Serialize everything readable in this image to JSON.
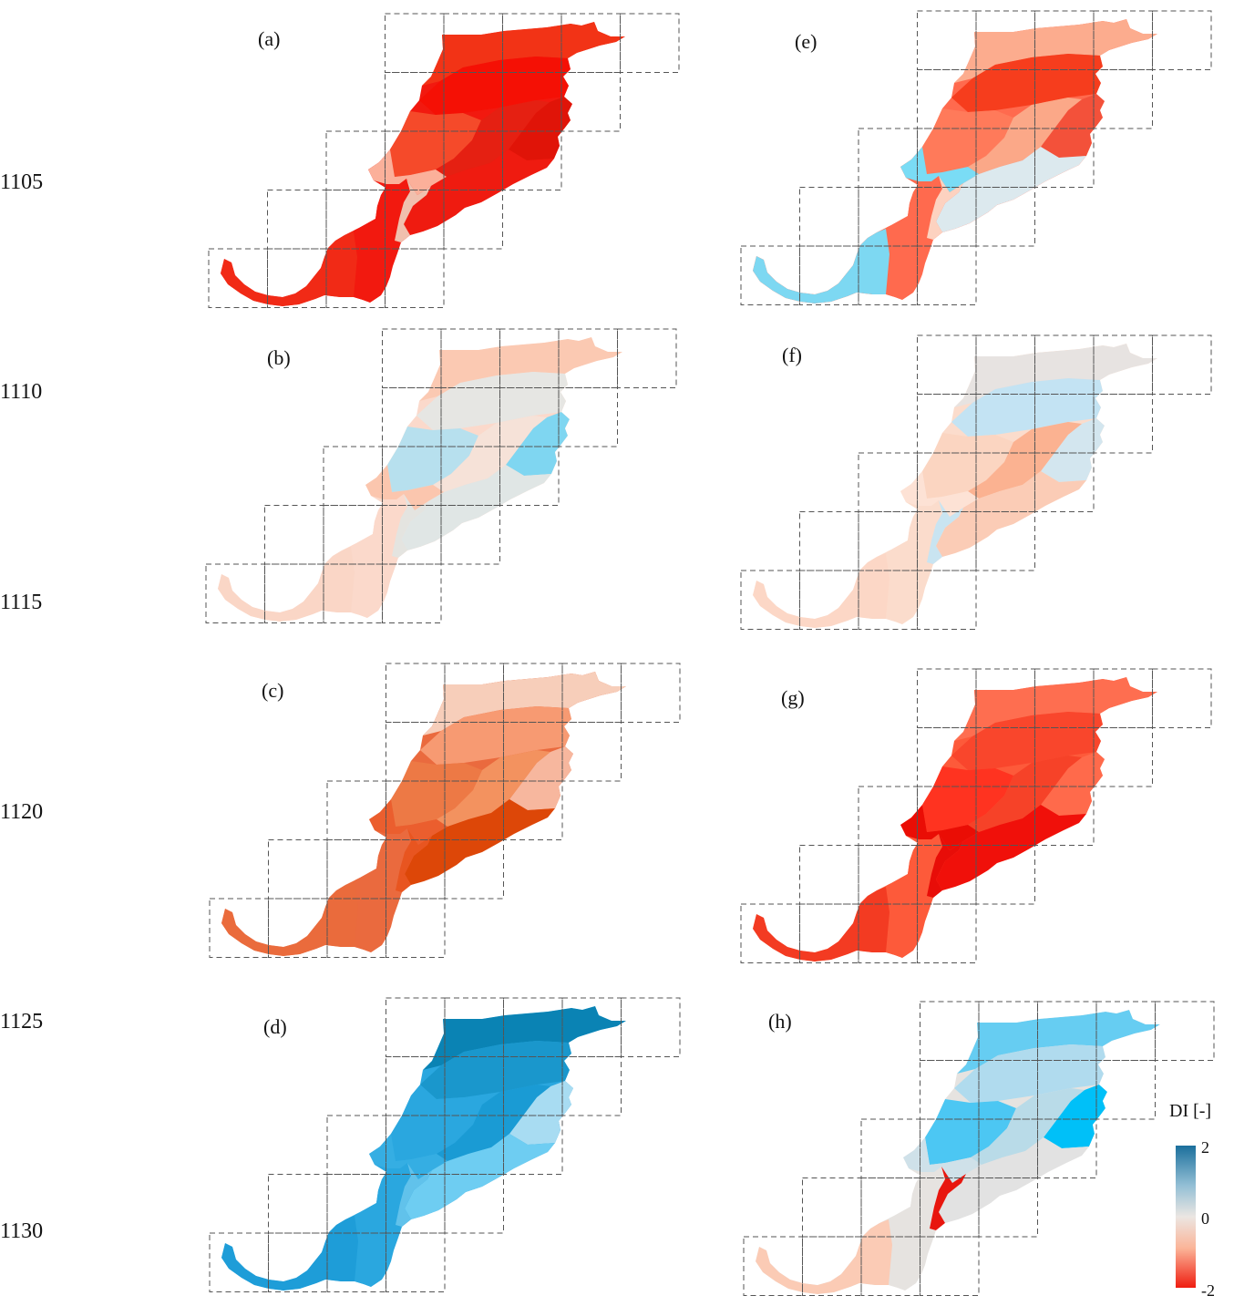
{
  "years": [
    "1105",
    "1110",
    "1115",
    "1120",
    "1125",
    "1130"
  ],
  "panels": [
    {
      "id": "a",
      "label": "(a)",
      "colors": [
        "#f2190f",
        "#f23316",
        "#f51005",
        "#e01408",
        "#f54a2a",
        "#e52012",
        "#fbb09a",
        "#ef1b10",
        "#f12a16",
        "#f0c0ae"
      ]
    },
    {
      "id": "b",
      "label": "(b)",
      "colors": [
        "#fbd9cb",
        "#fbc9b2",
        "#e6e6e3",
        "#7fd6f1",
        "#b7e0ee",
        "#f6e2d8",
        "#fbc6ae",
        "#e0e6e5",
        "#fad6c6",
        "#e4e4e0"
      ]
    },
    {
      "id": "c",
      "label": "(c)",
      "colors": [
        "#ea6a3e",
        "#f7ceba",
        "#f79a72",
        "#f7b79e",
        "#ed7945",
        "#f3925f",
        "#eb5e2e",
        "#dd4708",
        "#ea6b3c",
        "#e85520"
      ]
    },
    {
      "id": "d",
      "label": "(d)",
      "colors": [
        "#2aa7df",
        "#0a83b4",
        "#1a97cc",
        "#a8dcf2",
        "#2aa7df",
        "#1a9bd4",
        "#35aee3",
        "#6ecdf2",
        "#1e9dd8",
        "#61c2eb"
      ]
    },
    {
      "id": "e",
      "label": "(e)",
      "colors": [
        "#ff6a4e",
        "#fcac8e",
        "#f63d1d",
        "#f3513a",
        "#ff7a5a",
        "#fba888",
        "#7adcf5",
        "#dce9ee",
        "#7dd8f2",
        "#fdd2c0"
      ]
    },
    {
      "id": "f",
      "label": "(f)",
      "colors": [
        "#fbdccc",
        "#e7e3e1",
        "#c3e3f3",
        "#d3e6ef",
        "#fbd5c1",
        "#fbb291",
        "#fde2d5",
        "#fbccb6",
        "#fcd7c6",
        "#c9e4f1"
      ]
    },
    {
      "id": "g",
      "label": "(g)",
      "colors": [
        "#fd5a3a",
        "#fe6e50",
        "#f9462c",
        "#ff6a4b",
        "#ff3320",
        "#f64228",
        "#ea0d05",
        "#f0100a",
        "#f33b22",
        "#e80d08"
      ]
    },
    {
      "id": "h",
      "label": "(h)",
      "colors": [
        "#e6e3e0",
        "#66cdf2",
        "#b0dbee",
        "#00c0f8",
        "#4cc7f3",
        "#b9dbe8",
        "#cfe1e9",
        "#e2e2e2",
        "#fbcbb5",
        "#e8160e"
      ]
    }
  ],
  "legend": {
    "title": "DI [-]",
    "ticks": [
      "2",
      "0",
      "-2"
    ],
    "colors": [
      "#1b6f9c",
      "#93bfd5",
      "#ebe6e2",
      "#fbb599",
      "#ef1d10"
    ]
  }
}
